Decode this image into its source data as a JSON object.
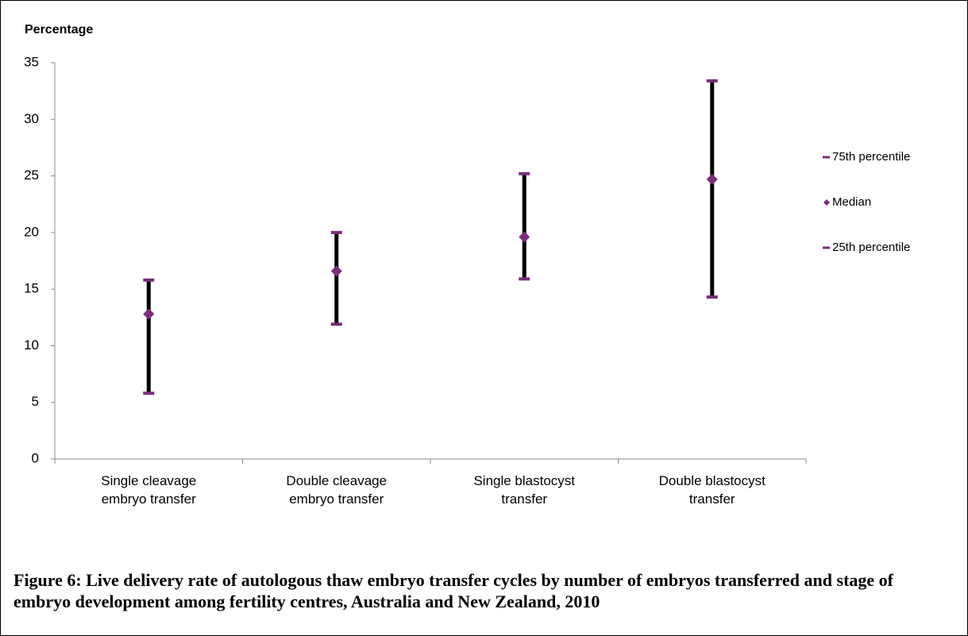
{
  "chart_data": {
    "type": "range",
    "y_label": "Percentage",
    "caption": "Figure 6: Live delivery rate of autologous thaw embryo transfer cycles by number of embryos transferred and stage of embryo development among fertility centres, Australia and New Zealand, 2010",
    "categories": [
      "Single cleavage embryo transfer",
      "Double cleavage embryo transfer",
      "Single blastocyst transfer",
      "Double blastocyst transfer"
    ],
    "series": [
      {
        "name": "75th percentile",
        "color": "#7b2c7b",
        "values": [
          15.8,
          20.0,
          25.2,
          33.4
        ]
      },
      {
        "name": "Median",
        "color": "#7b2c7b",
        "values": [
          12.8,
          16.6,
          19.6,
          24.7
        ]
      },
      {
        "name": "25th percentile",
        "color": "#7b2c7b",
        "values": [
          5.8,
          11.9,
          15.9,
          14.3
        ]
      }
    ],
    "range_color": "#000000",
    "ylim": [
      0,
      35
    ],
    "yticks": [
      0,
      5,
      10,
      15,
      20,
      25,
      30,
      35
    ],
    "legend": "right"
  }
}
